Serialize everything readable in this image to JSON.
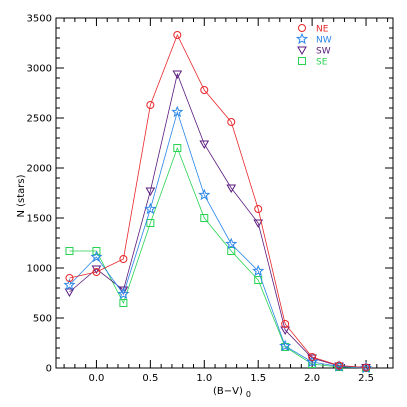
{
  "chart_data": {
    "type": "line",
    "xlabel": "(B−V)",
    "xlabel_subscript": "0",
    "ylabel": "N (stars)",
    "xlim": [
      -0.375,
      2.75
    ],
    "ylim": [
      0,
      3500
    ],
    "xticks": [
      -0.25,
      0,
      0.25,
      0.5,
      0.75,
      1.0,
      1.25,
      1.5,
      1.75,
      2.0,
      2.25,
      2.5
    ],
    "xtick_labels": [
      "0.0",
      "0.5",
      "1.0",
      "1.5",
      "2.0",
      "2.5"
    ],
    "yticks": [
      0,
      500,
      1000,
      1500,
      2000,
      2500,
      3000,
      3500
    ],
    "ytick_labels": [
      "0",
      "500",
      "1000",
      "1500",
      "2000",
      "2500",
      "3000",
      "3500"
    ],
    "x": [
      -0.25,
      0,
      0.25,
      0.5,
      0.75,
      1.0,
      1.25,
      1.5,
      1.75,
      2.0,
      2.25,
      2.5
    ],
    "legend_position": "top-right",
    "grid": false,
    "series": [
      {
        "name": "NE",
        "color": "#e8262a",
        "marker": "circle",
        "values": [
          900,
          960,
          1090,
          2630,
          3330,
          2780,
          2460,
          1590,
          440,
          110,
          25,
          5
        ]
      },
      {
        "name": "NW",
        "color": "#2a86e8",
        "marker": "star",
        "values": [
          830,
          1110,
          740,
          1590,
          2560,
          1730,
          1240,
          970,
          220,
          60,
          15,
          0
        ]
      },
      {
        "name": "SW",
        "color": "#5a1b7e",
        "marker": "triangle-down",
        "values": [
          760,
          990,
          780,
          1770,
          2940,
          2240,
          1800,
          1450,
          380,
          100,
          20,
          5
        ]
      },
      {
        "name": "SE",
        "color": "#29d352",
        "marker": "square",
        "values": [
          1170,
          1170,
          650,
          1450,
          2200,
          1500,
          1170,
          880,
          210,
          40,
          10,
          0
        ]
      }
    ]
  }
}
